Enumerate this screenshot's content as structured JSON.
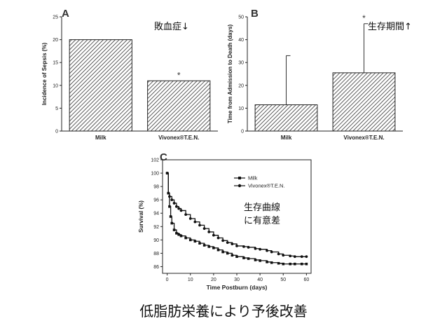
{
  "caption": "低脂肪栄養により予後改善",
  "chart_data": [
    {
      "panel": "A",
      "type": "bar",
      "categories": [
        "Milk",
        "Vivonex®T.E.N."
      ],
      "values": [
        20,
        11
      ],
      "ylabel": "Incidence of Sepsis (%)",
      "ylim": [
        0,
        25
      ],
      "yticks": [
        0,
        5,
        10,
        15,
        20,
        25
      ],
      "annotation": "敗血症↓",
      "significance": [
        "",
        "*"
      ]
    },
    {
      "panel": "B",
      "type": "bar",
      "categories": [
        "Milk",
        "Vivonex®T.E.N."
      ],
      "values": [
        11.5,
        25.5
      ],
      "error_upper": [
        33,
        47
      ],
      "ylabel": "Time from Admission to Death (days)",
      "ylim": [
        0,
        50
      ],
      "yticks": [
        0,
        10,
        20,
        30,
        40,
        50
      ],
      "annotation": "生存期間↑",
      "significance": [
        "",
        "*"
      ]
    },
    {
      "panel": "C",
      "type": "line",
      "xlabel": "Time Postburn (days)",
      "ylabel": "Survival (%)",
      "xlim": [
        -2,
        62
      ],
      "ylim": [
        85,
        102
      ],
      "xticks": [
        0,
        10,
        20,
        30,
        40,
        50,
        60
      ],
      "yticks": [
        86,
        88,
        90,
        92,
        94,
        96,
        98,
        100,
        102
      ],
      "annotation": [
        "生存曲線",
        "に有意差"
      ],
      "series": [
        {
          "name": "Milk",
          "marker": "square",
          "x": [
            0,
            0.5,
            1,
            1.5,
            2,
            3,
            4,
            5,
            6,
            8,
            10,
            12,
            14,
            16,
            18,
            20,
            22,
            24,
            26,
            28,
            30,
            33,
            35,
            38,
            40,
            43,
            45,
            48,
            50,
            53,
            55,
            58,
            60
          ],
          "y": [
            100,
            97,
            95,
            93.5,
            92.5,
            91.5,
            91,
            90.8,
            90.6,
            90.3,
            90,
            89.8,
            89.5,
            89.2,
            89,
            88.8,
            88.5,
            88.2,
            88,
            87.7,
            87.5,
            87.3,
            87.2,
            87,
            86.9,
            86.7,
            86.6,
            86.5,
            86.4,
            86.4,
            86.4,
            86.4,
            86.4
          ]
        },
        {
          "name": "Vivonex®T.E.N.",
          "marker": "circle",
          "x": [
            0,
            0.5,
            1,
            2,
            3,
            4,
            5,
            6,
            8,
            10,
            12,
            14,
            16,
            18,
            20,
            22,
            24,
            26,
            28,
            30,
            33,
            35,
            38,
            40,
            43,
            45,
            48,
            50,
            53,
            55,
            58,
            60
          ],
          "y": [
            100,
            97,
            96.5,
            96,
            95.5,
            95,
            94.7,
            94.4,
            93.8,
            93.2,
            92.7,
            92.2,
            91.7,
            91.2,
            90.7,
            90.3,
            89.9,
            89.6,
            89.4,
            89.1,
            89,
            88.9,
            88.7,
            88.6,
            88.4,
            88.2,
            87.9,
            87.7,
            87.6,
            87.5,
            87.5,
            87.5
          ]
        }
      ]
    }
  ]
}
